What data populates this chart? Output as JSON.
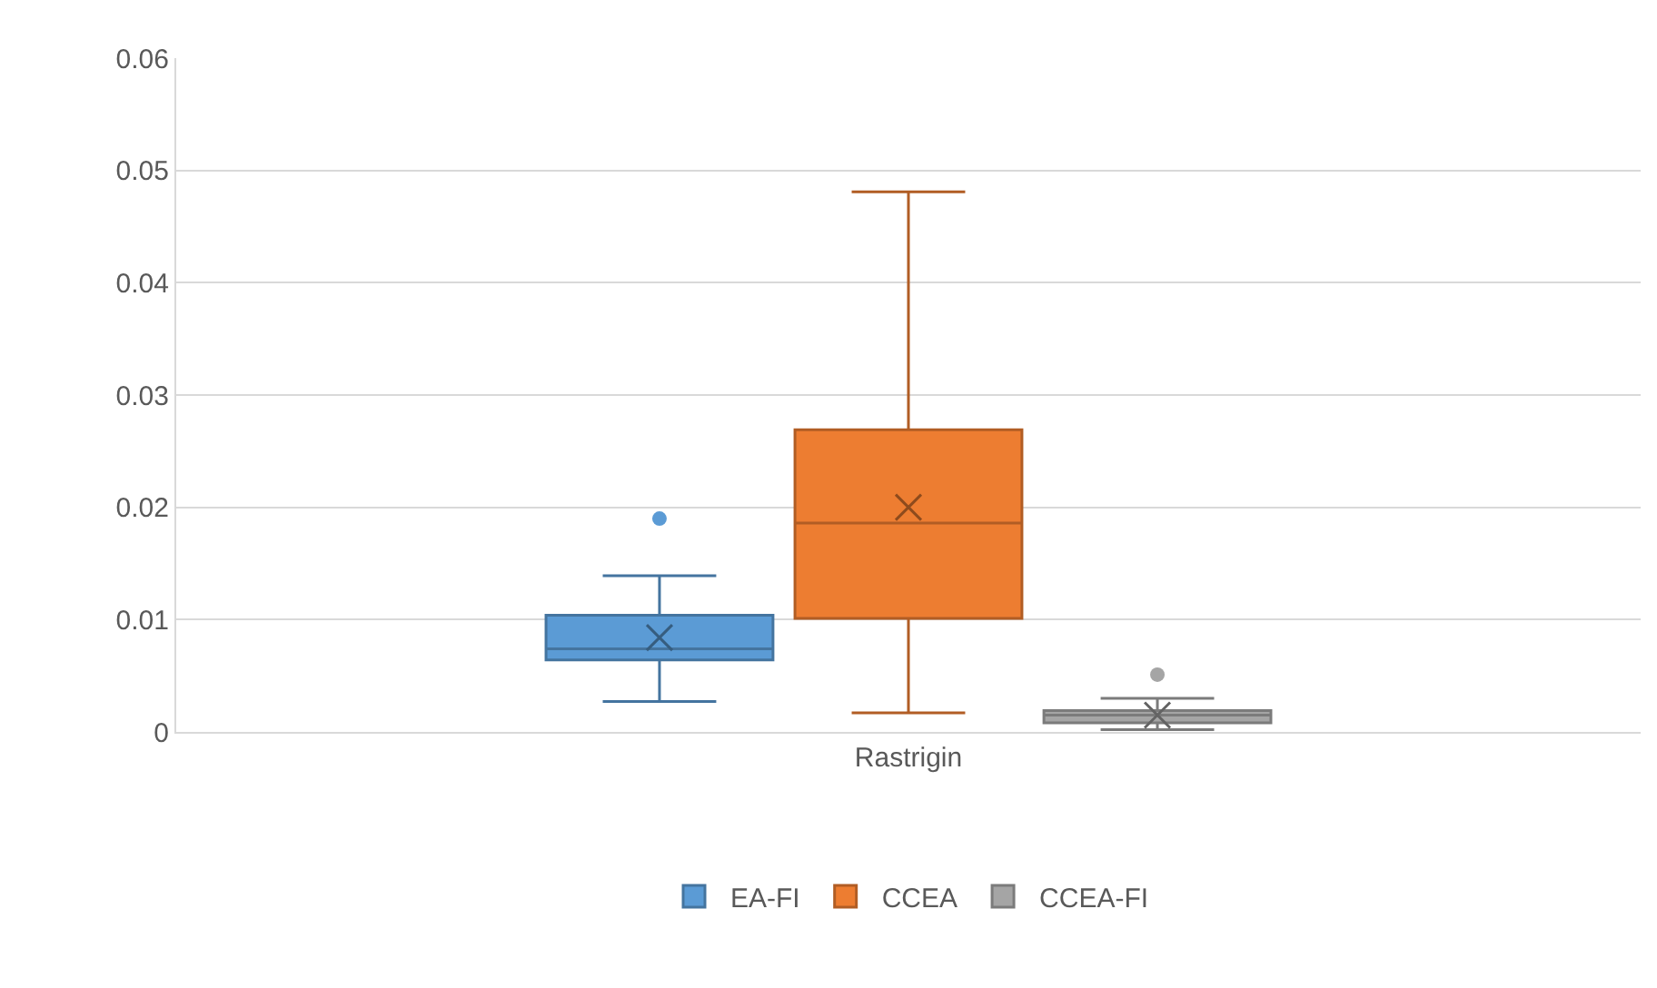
{
  "chart_data": {
    "type": "box",
    "categories": [
      "Rastrigin"
    ],
    "series": [
      {
        "name": "EA-FI",
        "color": "#5b9bd5",
        "boxes": [
          {
            "low": 0.0027,
            "q1": 0.0064,
            "median": 0.0074,
            "q3": 0.0104,
            "high": 0.0139,
            "mean": 0.0084,
            "outliers": [
              0.019
            ]
          }
        ]
      },
      {
        "name": "CCEA",
        "color": "#ed7d31",
        "boxes": [
          {
            "low": 0.0017,
            "q1": 0.0101,
            "median": 0.0186,
            "q3": 0.0269,
            "high": 0.0481,
            "mean": 0.02
          }
        ]
      },
      {
        "name": "CCEA-FI",
        "color": "#a5a5a5",
        "boxes": [
          {
            "low": 0.0002,
            "q1": 0.0008,
            "median": 0.0015,
            "q3": 0.0019,
            "high": 0.003,
            "mean": 0.0015,
            "outliers": [
              0.0051
            ]
          }
        ]
      }
    ],
    "ylim": [
      0,
      0.06
    ],
    "yticks": [
      0,
      0.01,
      0.02,
      0.03,
      0.04,
      0.05,
      0.06
    ],
    "grid": "y",
    "legend": "bottom"
  }
}
